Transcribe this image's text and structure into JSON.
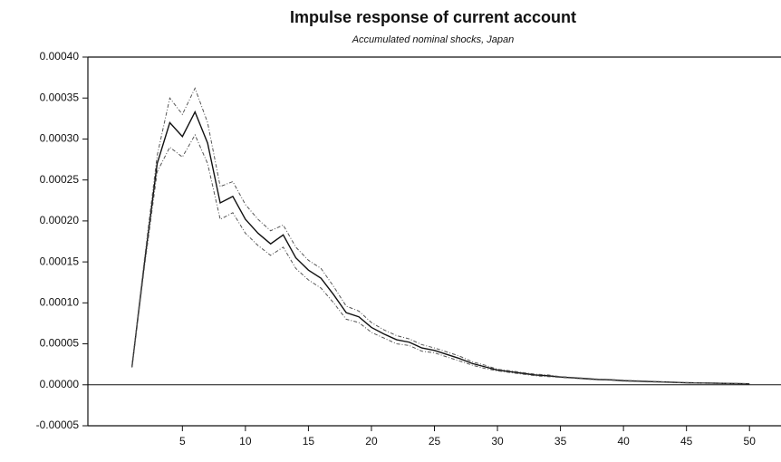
{
  "chart_data": {
    "type": "line",
    "title": "Impulse response of current account",
    "subtitle": "Accumulated nominal shocks, Japan",
    "x": [
      1,
      2,
      3,
      4,
      5,
      6,
      7,
      8,
      9,
      10,
      11,
      12,
      13,
      14,
      15,
      16,
      17,
      18,
      19,
      20,
      21,
      22,
      23,
      24,
      25,
      26,
      27,
      28,
      29,
      30,
      31,
      32,
      33,
      34,
      35,
      36,
      37,
      38,
      39,
      40,
      41,
      42,
      43,
      44,
      45,
      46,
      47,
      48,
      49,
      50
    ],
    "series": [
      {
        "color": "#111111",
        "dash": "none",
        "values": [
          2.2e-05,
          0.00015,
          0.00027,
          0.00032,
          0.000303,
          0.000333,
          0.000295,
          0.000222,
          0.00023,
          0.000202,
          0.000185,
          0.000172,
          0.000183,
          0.000155,
          0.00014,
          0.00013,
          0.00011,
          8.8e-05,
          8.3e-05,
          7e-05,
          6.2e-05,
          5.5e-05,
          5.2e-05,
          4.5e-05,
          4.2e-05,
          3.7e-05,
          3.2e-05,
          2.6e-05,
          2.2e-05,
          1.8e-05,
          1.6e-05,
          1.4e-05,
          1.2e-05,
          1.1e-05,
          9.5e-06,
          8.5e-06,
          7.5e-06,
          6.5e-06,
          6e-06,
          5e-06,
          4.5e-06,
          4e-06,
          3.5e-06,
          3e-06,
          2.5e-06,
          2.2e-06,
          2e-06,
          1.7e-06,
          1.5e-06,
          1.2e-06
        ]
      },
      {
        "color": "#555555",
        "dash": "4 2 1 2",
        "values": [
          2.3e-05,
          0.000155,
          0.00028,
          0.00035,
          0.00033,
          0.000362,
          0.00032,
          0.000242,
          0.000248,
          0.00022,
          0.000202,
          0.000188,
          0.000195,
          0.000168,
          0.000152,
          0.000142,
          0.00012,
          9.6e-05,
          9e-05,
          7.6e-05,
          6.7e-05,
          6e-05,
          5.6e-05,
          4.9e-05,
          4.5e-05,
          4e-05,
          3.5e-05,
          2.8e-05,
          2.4e-05,
          1.9e-05,
          1.7e-05,
          1.5e-05,
          1.3e-05,
          1.2e-05,
          1e-05,
          9e-06,
          8e-06,
          7e-06,
          6.5e-06,
          5.5e-06,
          5e-06,
          4.5e-06,
          3.8e-06,
          3.3e-06,
          2.8e-06,
          2.4e-06,
          2.2e-06,
          1.9e-06,
          1.7e-06,
          1.3e-06
        ]
      },
      {
        "color": "#555555",
        "dash": "4 2 1 2",
        "values": [
          2.1e-05,
          0.000145,
          0.00026,
          0.00029,
          0.000278,
          0.000305,
          0.00027,
          0.000202,
          0.00021,
          0.000185,
          0.00017,
          0.000158,
          0.000168,
          0.000142,
          0.000128,
          0.000118,
          0.0001,
          8e-05,
          7.6e-05,
          6.4e-05,
          5.7e-05,
          5e-05,
          4.8e-05,
          4.1e-05,
          3.9e-05,
          3.4e-05,
          2.9e-05,
          2.4e-05,
          2e-05,
          1.7e-05,
          1.5e-05,
          1.3e-05,
          1.1e-05,
          1e-05,
          9e-06,
          8e-06,
          7e-06,
          6e-06,
          5.5e-06,
          4.5e-06,
          4e-06,
          3.5e-06,
          3.2e-06,
          2.7e-06,
          2.2e-06,
          2e-06,
          1.8e-06,
          1.5e-06,
          1.3e-06,
          1.1e-06
        ]
      }
    ],
    "xlim": [
      -2.5,
      52.5
    ],
    "xticks": [
      5,
      10,
      15,
      20,
      25,
      30,
      35,
      40,
      45,
      50
    ],
    "ylim": [
      -5e-05,
      0.0004
    ],
    "yticks": [
      {
        "value": -5e-05,
        "label": "-0.00005"
      },
      {
        "value": 0,
        "label": "0.00000"
      },
      {
        "value": 5e-05,
        "label": "0.00005"
      },
      {
        "value": 0.0001,
        "label": "0.00010"
      },
      {
        "value": 0.00015,
        "label": "0.00015"
      },
      {
        "value": 0.0002,
        "label": "0.00020"
      },
      {
        "value": 0.00025,
        "label": "0.00025"
      },
      {
        "value": 0.0003,
        "label": "0.00030"
      },
      {
        "value": 0.00035,
        "label": "0.00035"
      },
      {
        "value": 0.0004,
        "label": "0.00040"
      }
    ],
    "grid": false
  }
}
